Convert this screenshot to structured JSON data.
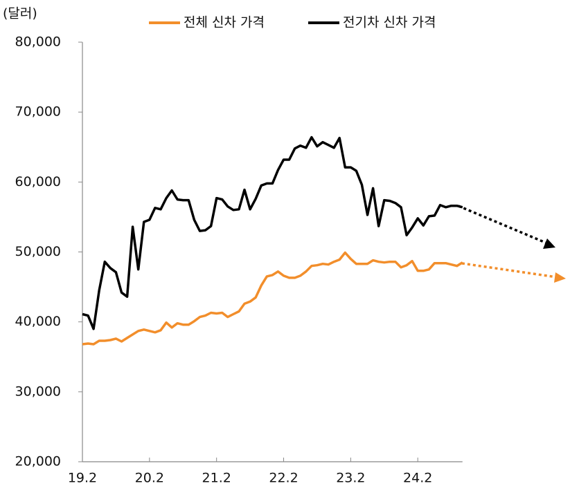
{
  "chart_data": {
    "type": "line",
    "y_label": "(달러)",
    "categories": [
      "19.2",
      null,
      null,
      null,
      null,
      null,
      null,
      null,
      null,
      null,
      null,
      null,
      "20.2",
      null,
      null,
      null,
      null,
      null,
      null,
      null,
      null,
      null,
      null,
      null,
      "21.2",
      null,
      null,
      null,
      null,
      null,
      null,
      null,
      null,
      null,
      null,
      null,
      "22.2",
      null,
      null,
      null,
      null,
      null,
      null,
      null,
      null,
      null,
      null,
      null,
      "23.2",
      null,
      null,
      null,
      null,
      null,
      null,
      null,
      null,
      null,
      null,
      null,
      "24.2",
      null,
      null,
      null,
      null,
      null,
      null,
      null,
      null
    ],
    "series": [
      {
        "name": "전체 신차 가격",
        "color": "#f28e2b",
        "values": [
          36800,
          36900,
          36800,
          37300,
          37300,
          37400,
          37600,
          37200,
          37700,
          38200,
          38700,
          38900,
          38700,
          38500,
          38800,
          39900,
          39200,
          39800,
          39600,
          39600,
          40100,
          40700,
          40900,
          41300,
          41200,
          41300,
          40700,
          41100,
          41500,
          42600,
          42900,
          43500,
          45200,
          46500,
          46700,
          47200,
          46600,
          46300,
          46300,
          46600,
          47200,
          48000,
          48100,
          48300,
          48200,
          48600,
          48900,
          49900,
          49000,
          48300,
          48300,
          48300,
          48800,
          48600,
          48500,
          48600,
          48600,
          47800,
          48100,
          48700,
          47300,
          47300,
          47500,
          48400,
          48400,
          48400,
          48200,
          48000,
          48500
        ]
      },
      {
        "name": "전기차 신차 가격",
        "color": "#000000",
        "values": [
          41100,
          40900,
          39000,
          44500,
          48600,
          47700,
          47100,
          44200,
          43600,
          53600,
          47500,
          54300,
          54600,
          56300,
          56100,
          57700,
          58800,
          57500,
          57400,
          57400,
          54600,
          53000,
          53100,
          53700,
          57700,
          57500,
          56500,
          56000,
          56100,
          58900,
          56100,
          57600,
          59500,
          59800,
          59800,
          61700,
          63200,
          63200,
          64800,
          65200,
          64900,
          66400,
          65100,
          65700,
          65300,
          64900,
          66300,
          62100,
          62100,
          61600,
          59600,
          55300,
          59100,
          53700,
          57400,
          57300,
          57000,
          56400,
          52400,
          53500,
          54800,
          53800,
          55100,
          55200,
          56700,
          56400,
          56600,
          56600,
          56400
        ]
      }
    ],
    "ylim": [
      20000,
      80000
    ],
    "yticks": [
      {
        "value": 20000,
        "label": "20,000"
      },
      {
        "value": 30000,
        "label": "30,000"
      },
      {
        "value": 40000,
        "label": "40,000"
      },
      {
        "value": 50000,
        "label": "50,000"
      },
      {
        "value": 60000,
        "label": "60,000"
      },
      {
        "value": 70000,
        "label": "70,000"
      },
      {
        "value": 80000,
        "label": "80,000"
      }
    ],
    "legend": "top"
  }
}
